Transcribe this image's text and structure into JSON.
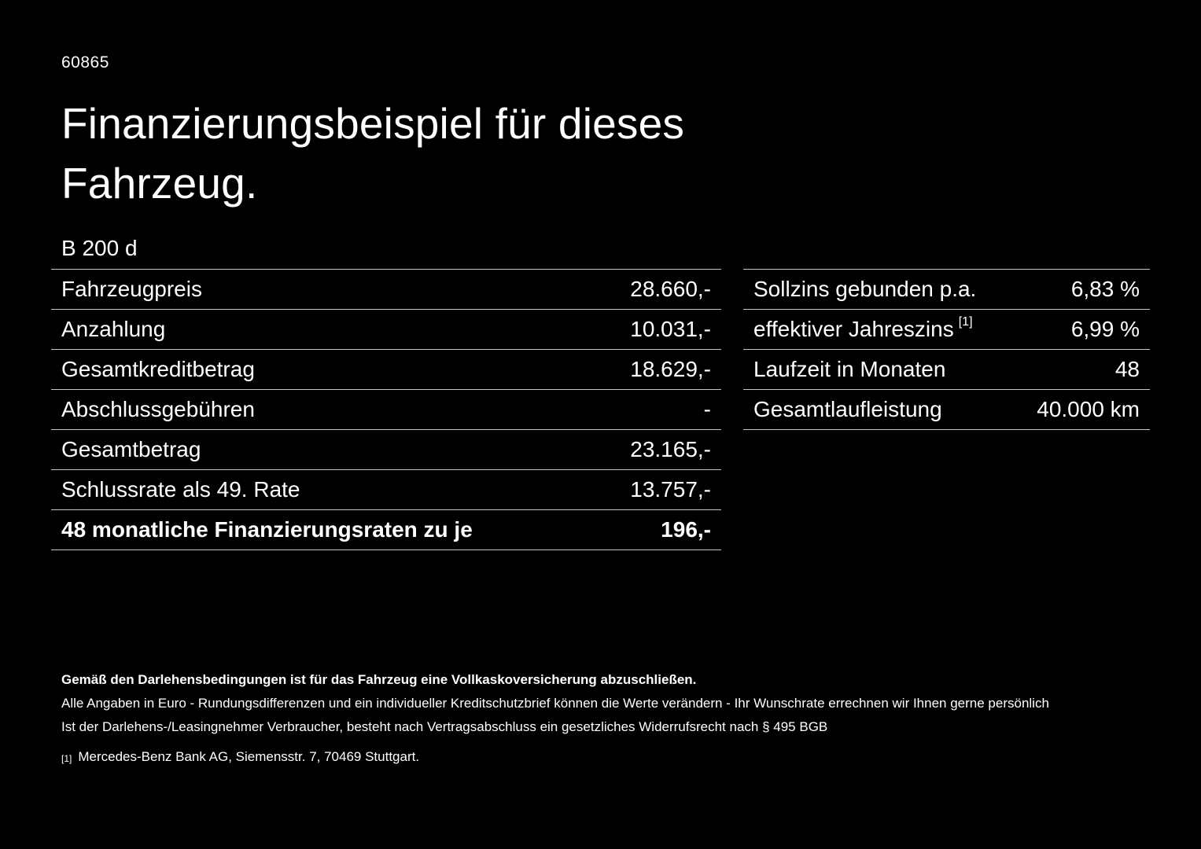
{
  "colors": {
    "background": "#000000",
    "text": "#ffffff",
    "divider": "#c8c8c8"
  },
  "header": {
    "ref_number": "60865",
    "title": "Finanzierungsbeispiel für dieses Fahrzeug.",
    "model": "B 200 d"
  },
  "financing_table": {
    "rows": [
      {
        "label": "Fahrzeugpreis",
        "value": "28.660,-"
      },
      {
        "label": "Anzahlung",
        "value": "10.031,-"
      },
      {
        "label": "Gesamtkreditbetrag",
        "value": "18.629,-"
      },
      {
        "label": "Abschlussgebühren",
        "value": "-"
      },
      {
        "label": "Gesamtbetrag",
        "value": "23.165,-"
      },
      {
        "label": "Schlussrate als 49. Rate",
        "value": "13.757,-"
      },
      {
        "label": "48 monatliche Finanzierungsraten zu je",
        "value": "196,-"
      }
    ]
  },
  "conditions_table": {
    "rows": [
      {
        "label": "Sollzins gebunden p.a.",
        "sup": "",
        "value": "6,83 %"
      },
      {
        "label": "effektiver Jahreszins",
        "sup": "[1]",
        "value": "6,99 %"
      },
      {
        "label": "Laufzeit in Monaten",
        "sup": "",
        "value": "48"
      },
      {
        "label": "Gesamtlaufleistung",
        "sup": "",
        "value": "40.000 km"
      }
    ]
  },
  "footer": {
    "insurance_note": "Gemäß den Darlehensbedingungen ist für das Fahrzeug eine Vollkaskoversicherung abzuschließen.",
    "note_rounding": "Alle Angaben in Euro - Rundungsdifferenzen und ein individueller Kreditschutzbrief können die Werte verändern - Ihr Wunschrate errechnen wir Ihnen gerne persönlich",
    "note_withdrawal": "Ist der Darlehens-/Leasingnehmer Verbraucher, besteht nach Vertragsabschluss ein gesetzliches Widerrufsrecht nach § 495 BGB",
    "footnote_marker": "[1]",
    "footnote_text": "Mercedes-Benz Bank AG, Siemensstr. 7, 70469 Stuttgart."
  }
}
